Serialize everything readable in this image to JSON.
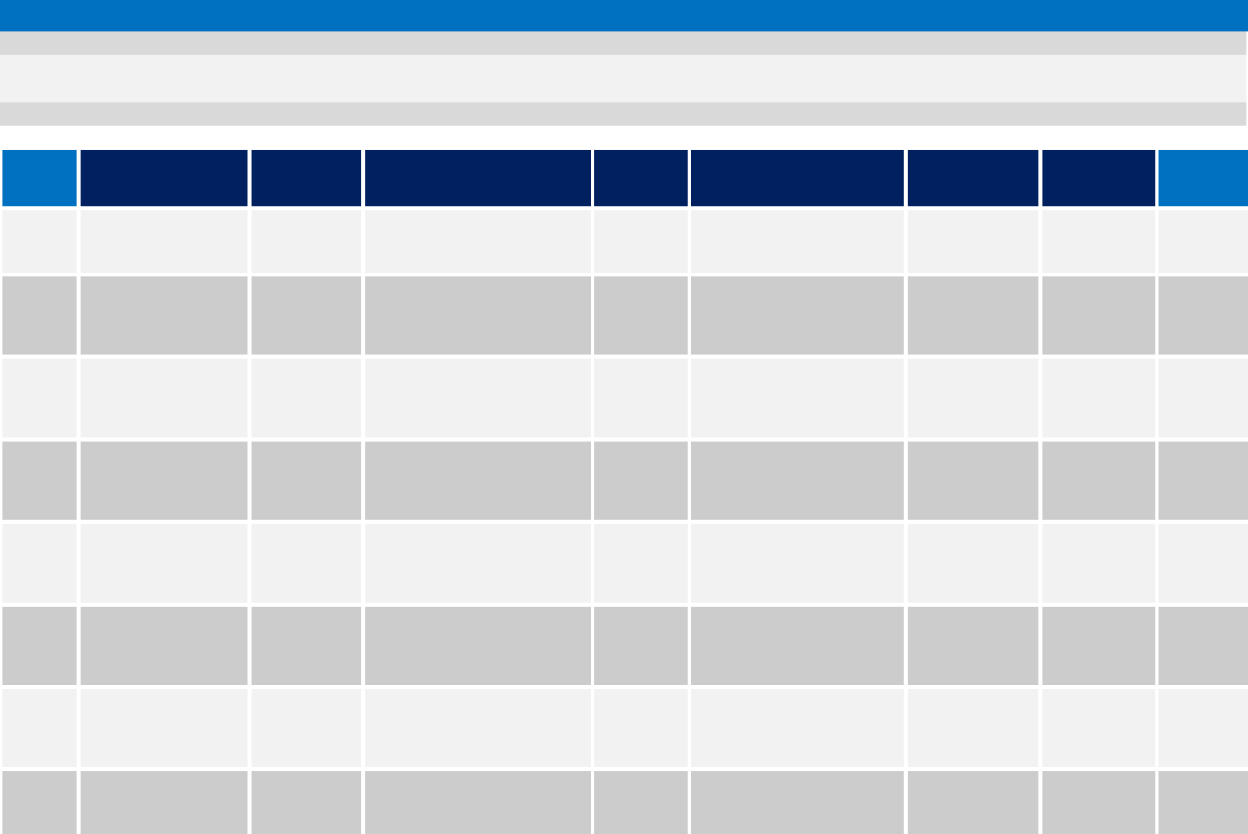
{
  "colors": {
    "top_bar": "#0070c0",
    "sub_bar": "#d9d9d9",
    "content_band": "#f2f2f2",
    "header_accent": "#0070c0",
    "header_dark": "#002060",
    "row_light": "#f2f2f2",
    "row_dark": "#cccccc"
  },
  "table": {
    "columns": [
      "",
      "",
      "",
      "",
      "",
      "",
      "",
      "",
      ""
    ],
    "header_style": [
      "accent",
      "dark",
      "dark",
      "dark",
      "dark",
      "dark",
      "dark",
      "dark",
      "accent"
    ],
    "rows": [
      [
        "",
        "",
        "",
        "",
        "",
        "",
        "",
        "",
        ""
      ],
      [
        "",
        "",
        "",
        "",
        "",
        "",
        "",
        "",
        ""
      ],
      [
        "",
        "",
        "",
        "",
        "",
        "",
        "",
        "",
        ""
      ],
      [
        "",
        "",
        "",
        "",
        "",
        "",
        "",
        "",
        ""
      ],
      [
        "",
        "",
        "",
        "",
        "",
        "",
        "",
        "",
        ""
      ],
      [
        "",
        "",
        "",
        "",
        "",
        "",
        "",
        "",
        ""
      ],
      [
        "",
        "",
        "",
        "",
        "",
        "",
        "",
        "",
        ""
      ],
      [
        "",
        "",
        "",
        "",
        "",
        "",
        "",
        "",
        ""
      ]
    ]
  }
}
